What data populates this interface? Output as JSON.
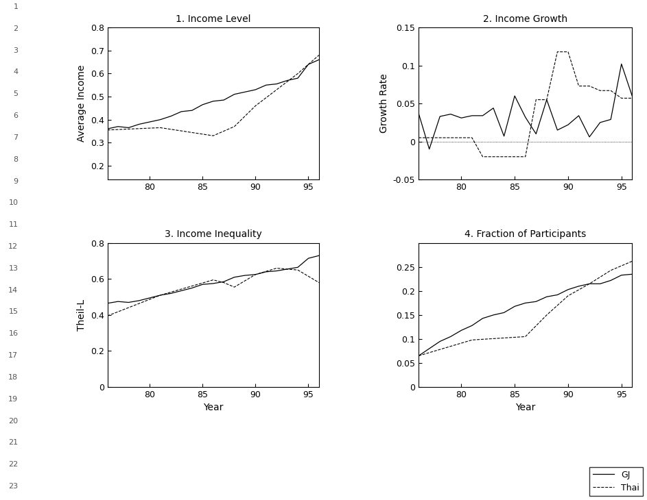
{
  "line_numbers": [
    1,
    2,
    3,
    4,
    5,
    6,
    7,
    8,
    9,
    10,
    11,
    12,
    13,
    14,
    15,
    16,
    17,
    18,
    19,
    20,
    21,
    22,
    23
  ],
  "legend": "lower right",
  "chart_data": [
    {
      "type": "line",
      "title": "1. Income Level",
      "y_label": "Average Income",
      "xlim": [
        76,
        96
      ],
      "xticks": [
        80,
        85,
        90,
        95
      ],
      "ylim": [
        0.14,
        0.8
      ],
      "yticks": [
        0.2,
        0.3,
        0.4,
        0.5,
        0.6,
        0.7,
        0.8
      ],
      "series": [
        {
          "name": "GJ",
          "color": "#000000",
          "line_style": "solid",
          "x": [
            76,
            77,
            78,
            79,
            80,
            81,
            82,
            83,
            84,
            85,
            86,
            87,
            88,
            89,
            90,
            91,
            92,
            93,
            94,
            95,
            96
          ],
          "values": [
            0.36,
            0.37,
            0.365,
            0.38,
            0.39,
            0.4,
            0.415,
            0.435,
            0.44,
            0.465,
            0.48,
            0.485,
            0.51,
            0.52,
            0.53,
            0.55,
            0.555,
            0.57,
            0.58,
            0.64,
            0.66
          ]
        },
        {
          "name": "Thai",
          "color": "#000000",
          "line_style": "dashed",
          "x": [
            76,
            81,
            86,
            88,
            90,
            92,
            94,
            96
          ],
          "values": [
            0.355,
            0.365,
            0.33,
            0.37,
            0.46,
            0.53,
            0.6,
            0.68
          ]
        }
      ]
    },
    {
      "type": "line",
      "title": "2. Income Growth",
      "y_label": "Growth Rate",
      "xlim": [
        76,
        96
      ],
      "xticks": [
        80,
        85,
        90,
        95
      ],
      "ylim": [
        -0.05,
        0.15
      ],
      "yticks": [
        -0.05,
        0,
        0.05,
        0.1,
        0.15
      ],
      "reference_line": 0,
      "series": [
        {
          "name": "GJ",
          "color": "#000000",
          "line_style": "solid",
          "x": [
            76,
            77,
            78,
            79,
            80,
            81,
            82,
            83,
            84,
            85,
            86,
            87,
            88,
            89,
            90,
            91,
            92,
            93,
            94,
            95,
            96
          ],
          "values": [
            0.037,
            -0.01,
            0.033,
            0.036,
            0.031,
            0.034,
            0.034,
            0.044,
            0.007,
            0.06,
            0.032,
            0.01,
            0.055,
            0.015,
            0.022,
            0.034,
            0.006,
            0.025,
            0.029,
            0.102,
            0.06
          ]
        },
        {
          "name": "Thai",
          "color": "#000000",
          "line_style": "dashed",
          "x": [
            76,
            81,
            82,
            86,
            87,
            88,
            89,
            90,
            91,
            92,
            93,
            94,
            95,
            96
          ],
          "values": [
            0.005,
            0.005,
            -0.02,
            -0.02,
            0.055,
            0.055,
            0.118,
            0.118,
            0.073,
            0.073,
            0.067,
            0.067,
            0.057,
            0.057
          ]
        }
      ]
    },
    {
      "type": "line",
      "title": "3. Income Inequality",
      "y_label": "Theil-L",
      "x_label": "Year",
      "xlim": [
        76,
        96
      ],
      "xticks": [
        80,
        85,
        90,
        95
      ],
      "ylim": [
        0,
        0.8
      ],
      "yticks": [
        0,
        0.2,
        0.4,
        0.6,
        0.8
      ],
      "series": [
        {
          "name": "GJ",
          "color": "#000000",
          "line_style": "solid",
          "x": [
            76,
            77,
            78,
            79,
            80,
            81,
            82,
            83,
            84,
            85,
            86,
            87,
            88,
            89,
            90,
            91,
            92,
            93,
            94,
            95,
            96
          ],
          "values": [
            0.465,
            0.475,
            0.47,
            0.48,
            0.495,
            0.51,
            0.52,
            0.535,
            0.55,
            0.57,
            0.575,
            0.585,
            0.61,
            0.62,
            0.625,
            0.64,
            0.645,
            0.655,
            0.665,
            0.715,
            0.73
          ]
        },
        {
          "name": "Thai",
          "color": "#000000",
          "line_style": "dashed",
          "x": [
            76,
            81,
            86,
            87,
            88,
            90,
            92,
            94,
            96
          ],
          "values": [
            0.395,
            0.51,
            0.595,
            0.58,
            0.555,
            0.625,
            0.66,
            0.65,
            0.58
          ]
        }
      ]
    },
    {
      "type": "line",
      "title": "4. Fraction of Participants",
      "x_label": "Year",
      "xlim": [
        76,
        96
      ],
      "xticks": [
        80,
        85,
        90,
        95
      ],
      "ylim": [
        0,
        0.3
      ],
      "yticks": [
        0.05,
        0.1,
        0.15,
        0.2,
        0.25,
        0
      ],
      "series": [
        {
          "name": "GJ",
          "color": "#000000",
          "line_style": "solid",
          "x": [
            76,
            77,
            78,
            79,
            80,
            81,
            82,
            83,
            84,
            85,
            86,
            87,
            88,
            89,
            90,
            91,
            92,
            93,
            94,
            95,
            96
          ],
          "values": [
            0.065,
            0.08,
            0.095,
            0.105,
            0.118,
            0.128,
            0.143,
            0.15,
            0.155,
            0.168,
            0.175,
            0.178,
            0.188,
            0.192,
            0.203,
            0.21,
            0.215,
            0.215,
            0.222,
            0.233,
            0.235
          ]
        },
        {
          "name": "Thai",
          "color": "#000000",
          "line_style": "dashed",
          "x": [
            76,
            81,
            86,
            88,
            90,
            92,
            94,
            96
          ],
          "values": [
            0.065,
            0.098,
            0.105,
            0.15,
            0.19,
            0.215,
            0.243,
            0.262
          ]
        }
      ]
    }
  ]
}
